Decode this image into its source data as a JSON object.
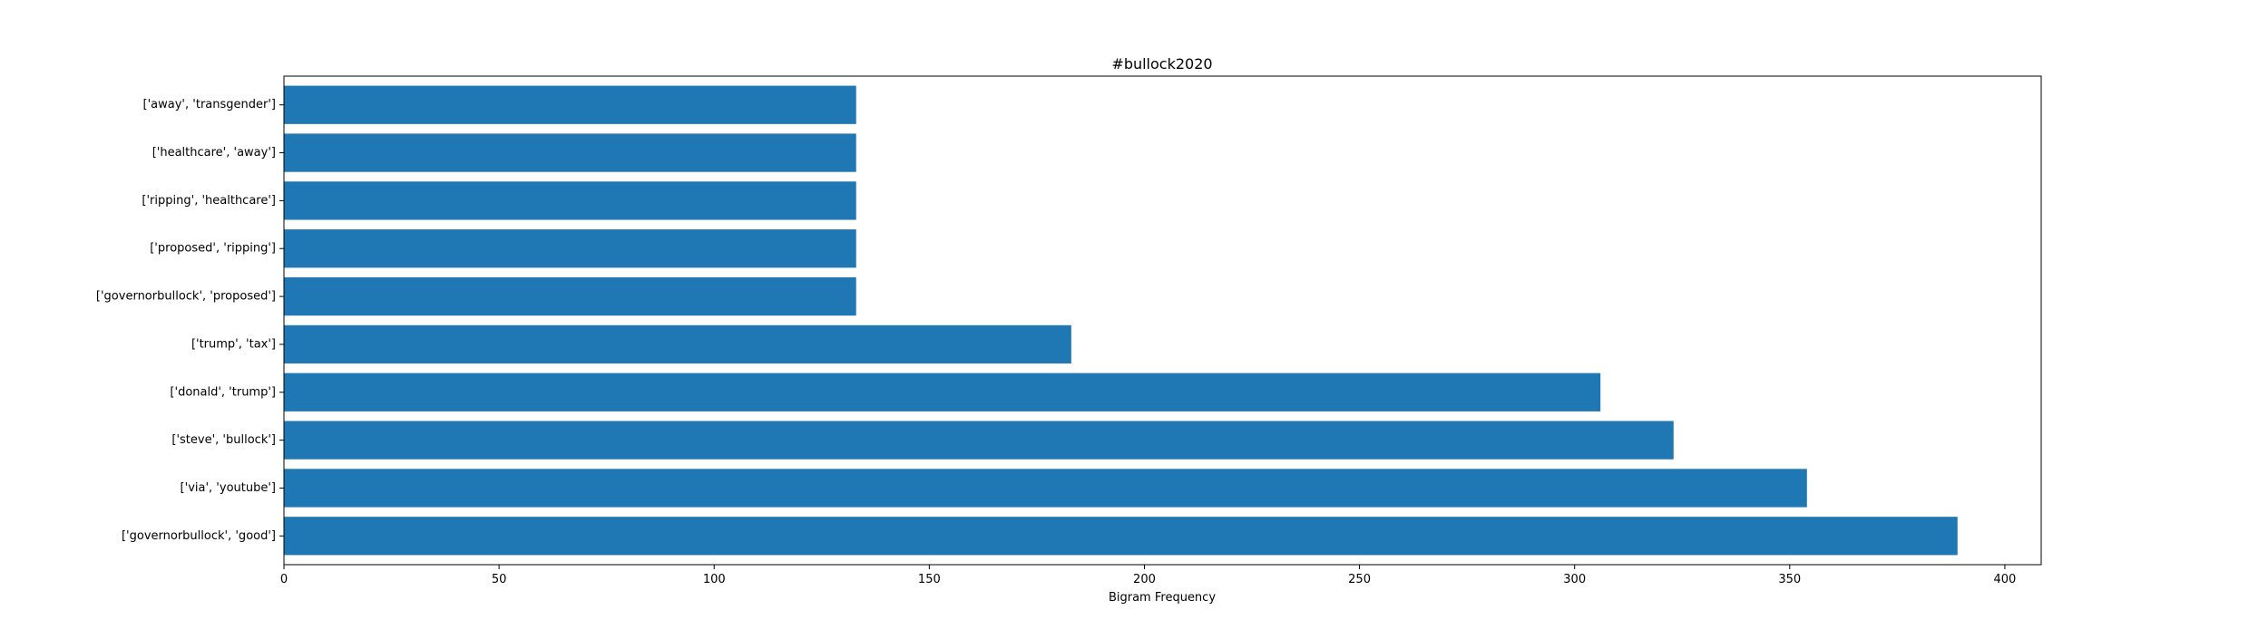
{
  "chart_data": {
    "type": "bar",
    "orientation": "horizontal",
    "title": "#bullock2020",
    "xlabel": "Bigram Frequency",
    "ylabel": "",
    "categories": [
      "['governorbullock', 'good']",
      "['via', 'youtube']",
      "['steve', 'bullock']",
      "['donald', 'trump']",
      "['trump', 'tax']",
      "['governorbullock', 'proposed']",
      "['proposed', 'ripping']",
      "['ripping', 'healthcare']",
      "['healthcare', 'away']",
      "['away', 'transgender']"
    ],
    "values": [
      389,
      354,
      323,
      306,
      183,
      133,
      133,
      133,
      133,
      133
    ],
    "xlim": [
      0,
      408.45
    ],
    "xticks": [
      0,
      50,
      100,
      150,
      200,
      250,
      300,
      350,
      400
    ],
    "grid": false,
    "legend": "none",
    "bar_color": "#1f77b4"
  }
}
